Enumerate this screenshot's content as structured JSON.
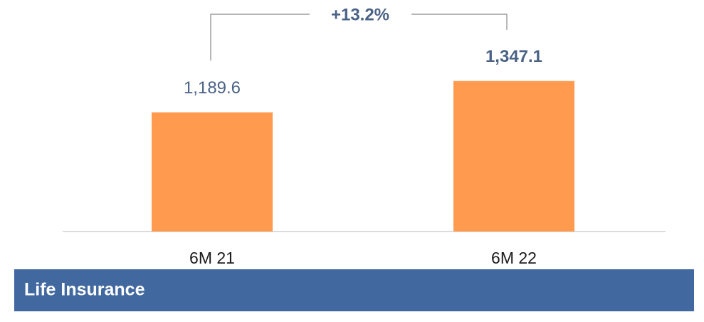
{
  "chart_data": {
    "type": "bar",
    "categories": [
      "6M 21",
      "6M 22"
    ],
    "values": [
      1189.6,
      1347.1
    ],
    "value_labels": [
      "1,189.6",
      "1,347.1"
    ],
    "color": "#ff9a4f",
    "ylim": [
      590,
      1500
    ],
    "annotation": "+13.2%",
    "footer": "Life Insurance"
  }
}
